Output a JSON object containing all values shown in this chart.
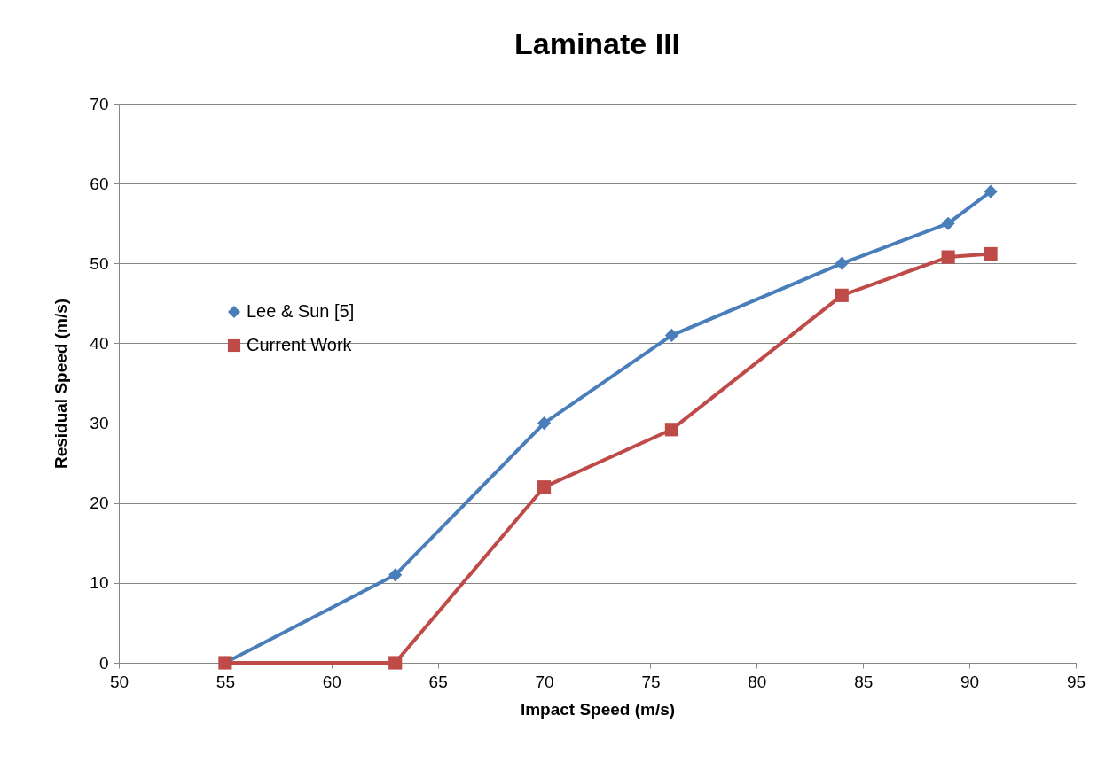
{
  "chart_data": {
    "type": "line",
    "title": "Laminate III",
    "xlabel": "Impact Speed (m/s)",
    "ylabel": "Residual Speed (m/s)",
    "xlim": [
      50,
      95
    ],
    "xticks": [
      50,
      55,
      60,
      65,
      70,
      75,
      80,
      85,
      90,
      95
    ],
    "ylim": [
      0,
      70
    ],
    "yticks": [
      0,
      10,
      20,
      30,
      40,
      50,
      60,
      70
    ],
    "grid": "y",
    "legend": "left",
    "line_style": "solid",
    "series": [
      {
        "name": "Lee & Sun [5]",
        "color": "#4a7ebb",
        "marker": "diamond",
        "x": [
          55,
          63,
          70,
          76,
          84,
          89,
          91
        ],
        "values": [
          0,
          11,
          30,
          41,
          50,
          55,
          59
        ]
      },
      {
        "name": "Current Work",
        "color": "#be4b48",
        "marker": "square",
        "x": [
          55,
          63,
          70,
          76,
          84,
          89,
          91
        ],
        "values": [
          0,
          0,
          22,
          29.2,
          46,
          50.8,
          51.2
        ]
      }
    ]
  }
}
